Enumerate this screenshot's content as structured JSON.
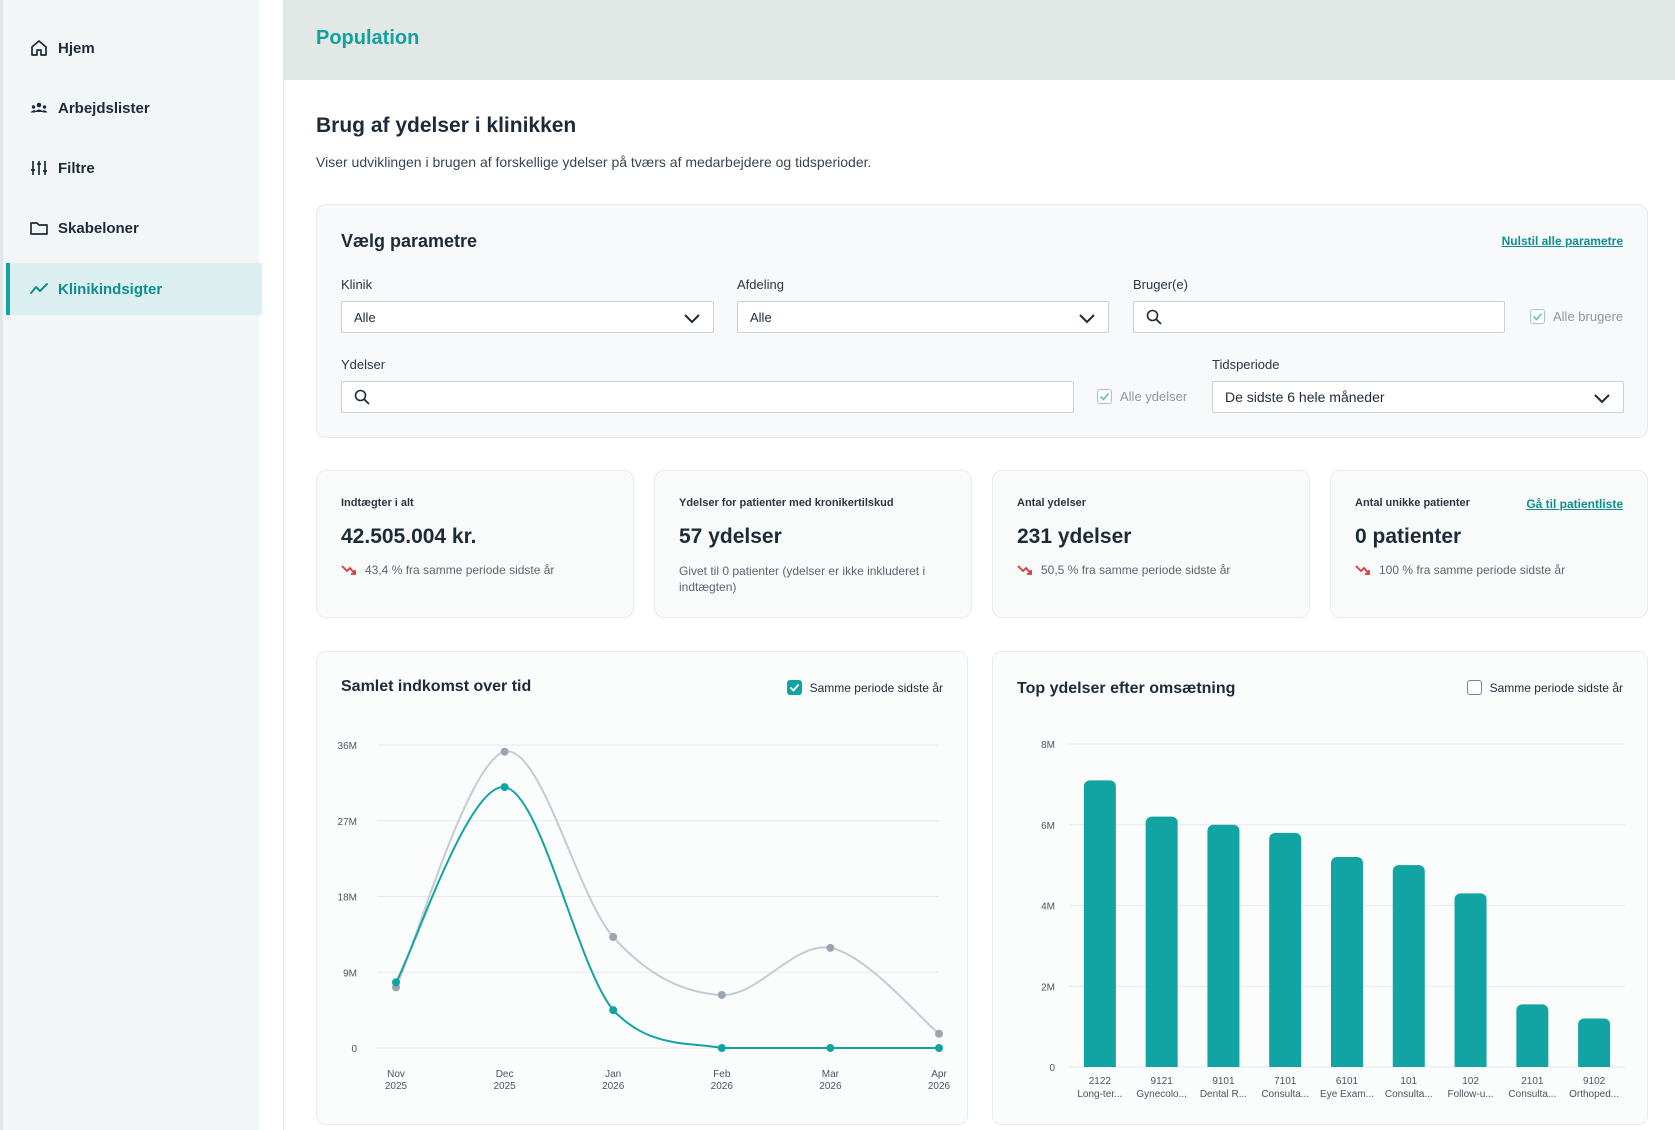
{
  "sidebar": {
    "items": [
      {
        "label": "Hjem",
        "icon": "home-icon",
        "active": false
      },
      {
        "label": "Arbejdslister",
        "icon": "users-icon",
        "active": false
      },
      {
        "label": "Filtre",
        "icon": "sliders-icon",
        "active": false
      },
      {
        "label": "Skabeloner",
        "icon": "folder-icon",
        "active": false
      },
      {
        "label": "Klinikindsigter",
        "icon": "trend-icon",
        "active": true
      }
    ]
  },
  "header": {
    "title": "Population"
  },
  "main": {
    "title": "Brug af ydelser i klinikken",
    "description": "Viser udviklingen i brugen af forskellige ydelser på tværs af medarbejdere og tidsperioder."
  },
  "params": {
    "title": "Vælg parametre",
    "reset_label": "Nulstil alle parametre",
    "klinik_label": "Klinik",
    "klinik_value": "Alle",
    "afdeling_label": "Afdeling",
    "afdeling_value": "Alle",
    "bruger_label": "Bruger(e)",
    "bruger_value": "",
    "alle_brugere_label": "Alle brugere",
    "ydelser_label": "Ydelser",
    "ydelser_value": "",
    "alle_ydelser_label": "Alle ydelser",
    "tidsperiode_label": "Tidsperiode",
    "tidsperiode_value": "De sidste 6 hele måneder"
  },
  "cards": {
    "income": {
      "title": "Indtægter i alt",
      "value": "42.505.004 kr.",
      "sub": "43,4 % fra samme periode sidste år"
    },
    "chronic": {
      "title": "Ydelser for patienter med kronikertilskud",
      "value": "57 ydelser",
      "sub": "Givet til 0 patienter (ydelser er ikke inkluderet i indtægten)"
    },
    "count": {
      "title": "Antal ydelser",
      "value": "231 ydelser",
      "sub": "50,5 % fra samme periode sidste år"
    },
    "patients": {
      "title": "Antal unikke patienter",
      "value": "0 patienter",
      "sub": "100 % fra samme periode sidste år",
      "link": "Gå til patientliste"
    }
  },
  "colors": {
    "accent": "#12a4a2",
    "prev_year": "#c3cbd4",
    "down": "#d63b3b"
  },
  "chart_data": [
    {
      "type": "line",
      "title": "Samlet indkomst over tid",
      "legend_checkbox": "Samme periode sidste år",
      "legend_checked": true,
      "x": [
        "Nov 2025",
        "Dec 2025",
        "Jan 2026",
        "Feb 2026",
        "Mar 2026",
        "Apr 2026"
      ],
      "x_top": [
        "Nov",
        "Dec",
        "Jan",
        "Feb",
        "Mar",
        "Apr"
      ],
      "x_bottom": [
        "2025",
        "2025",
        "2026",
        "2026",
        "2026",
        "2026"
      ],
      "y_ticks": [
        "0",
        "9M",
        "18M",
        "27M",
        "36M"
      ],
      "ylim": [
        0,
        36000000
      ],
      "series": [
        {
          "values": [
            7800000,
            31000000,
            4500000,
            0,
            0,
            0
          ]
        },
        {
          "values": [
            7200000,
            35200000,
            13200000,
            6300000,
            11900000,
            1700000
          ]
        }
      ],
      "grid": true
    },
    {
      "type": "bar",
      "title": "Top ydelser efter omsætning",
      "legend_checkbox": "Samme periode sidste år",
      "legend_checked": false,
      "categories": [
        "2122",
        "9121",
        "9101",
        "7101",
        "6101",
        "101",
        "102",
        "2101",
        "9102"
      ],
      "category_labels": [
        "Long-ter...",
        "Gynecolo...",
        "Dental R...",
        "Consulta...",
        "Eye Exam...",
        "Consulta...",
        "Follow-u...",
        "Consulta...",
        "Orthoped..."
      ],
      "values": [
        7100000,
        6200000,
        6000000,
        5800000,
        5200000,
        5000000,
        4300000,
        1550000,
        1200000
      ],
      "y_ticks": [
        "0",
        "2M",
        "4M",
        "6M",
        "8M"
      ],
      "ylim": [
        0,
        8000000
      ],
      "grid": true
    }
  ]
}
